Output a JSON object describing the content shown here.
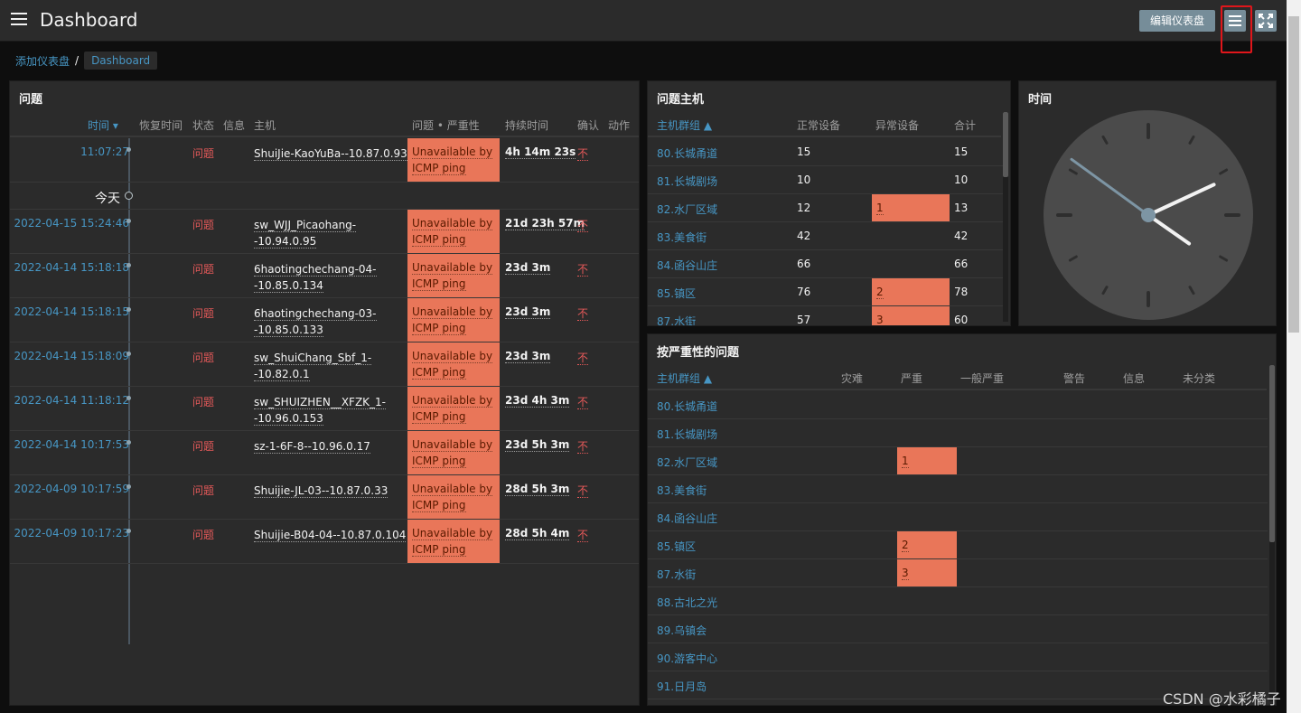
{
  "header": {
    "title": "Dashboard",
    "edit_button": "编辑仪表盘"
  },
  "breadcrumb": {
    "parent": "添加仪表盘",
    "current": "Dashboard"
  },
  "problems": {
    "title": "问题",
    "columns": {
      "time": "时间 ▾",
      "recovery": "恢复时间",
      "status": "状态",
      "info": "信息",
      "host": "主机",
      "problem": "问题 • 严重性",
      "duration": "持续时间",
      "ack": "确认",
      "actions": "动作"
    },
    "today_label": "今天",
    "rows": [
      {
        "time": "11:07:27",
        "status": "问题",
        "host": "ShuiJie-KaoYuBa--10.87.0.93",
        "problem": "Unavailable by ICMP ping",
        "duration": "4h 14m 23s",
        "ack": "不"
      },
      {
        "time": "2022-04-15 15:24:46",
        "status": "问题",
        "host": "sw_WJJ_Picaohang--10.94.0.95",
        "problem": "Unavailable by ICMP ping",
        "duration": "21d 23h 57m",
        "ack": "不"
      },
      {
        "time": "2022-04-14 15:18:18",
        "status": "问题",
        "host": "6haotingchechang-04--10.85.0.134",
        "problem": "Unavailable by ICMP ping",
        "duration": "23d 3m",
        "ack": "不"
      },
      {
        "time": "2022-04-14 15:18:15",
        "status": "问题",
        "host": "6haotingchechang-03--10.85.0.133",
        "problem": "Unavailable by ICMP ping",
        "duration": "23d 3m",
        "ack": "不"
      },
      {
        "time": "2022-04-14 15:18:09",
        "status": "问题",
        "host": "sw_ShuiChang_Sbf_1--10.82.0.1",
        "problem": "Unavailable by ICMP ping",
        "duration": "23d 3m",
        "ack": "不"
      },
      {
        "time": "2022-04-14 11:18:12",
        "status": "问题",
        "host": "sw_SHUIZHEN__XFZK_1--10.96.0.153",
        "problem": "Unavailable by ICMP ping",
        "duration": "23d 4h 3m",
        "ack": "不"
      },
      {
        "time": "2022-04-14 10:17:53",
        "status": "问题",
        "host": "sz-1-6F-8--10.96.0.17",
        "problem": "Unavailable by ICMP ping",
        "duration": "23d 5h 3m",
        "ack": "不"
      },
      {
        "time": "2022-04-09 10:17:59",
        "status": "问题",
        "host": "Shuijie-JL-03--10.87.0.33",
        "problem": "Unavailable by ICMP ping",
        "duration": "28d 5h 3m",
        "ack": "不"
      },
      {
        "time": "2022-04-09 10:17:23",
        "status": "问题",
        "host": "Shuijie-B04-04--10.87.0.104",
        "problem": "Unavailable by ICMP ping",
        "duration": "28d 5h 4m",
        "ack": "不"
      }
    ]
  },
  "problem_hosts": {
    "title": "问题主机",
    "columns": {
      "group": "主机群组 ▲",
      "ok": "正常设备",
      "problem": "异常设备",
      "total": "合计"
    },
    "rows": [
      {
        "group": "80.长城甬道",
        "ok": "15",
        "problem": "",
        "total": "15"
      },
      {
        "group": "81.长城剧场",
        "ok": "10",
        "problem": "",
        "total": "10"
      },
      {
        "group": "82.水厂区域",
        "ok": "12",
        "problem": "1",
        "total": "13"
      },
      {
        "group": "83.美食街",
        "ok": "42",
        "problem": "",
        "total": "42"
      },
      {
        "group": "84.函谷山庄",
        "ok": "66",
        "problem": "",
        "total": "66"
      },
      {
        "group": "85.镇区",
        "ok": "76",
        "problem": "2",
        "total": "78"
      },
      {
        "group": "87.水街",
        "ok": "57",
        "problem": "3",
        "total": "60"
      }
    ]
  },
  "clock": {
    "title": "时间",
    "time": {
      "hours": 4,
      "minutes": 10,
      "seconds": 51
    }
  },
  "severity": {
    "title": "按严重性的问题",
    "columns": {
      "group": "主机群组 ▲",
      "disaster": "灾难",
      "high": "严重",
      "average": "一般严重",
      "warning": "警告",
      "info": "信息",
      "unclassified": "未分类"
    },
    "rows": [
      {
        "group": "80.长城甬道",
        "high": ""
      },
      {
        "group": "81.长城剧场",
        "high": ""
      },
      {
        "group": "82.水厂区域",
        "high": "1"
      },
      {
        "group": "83.美食街",
        "high": ""
      },
      {
        "group": "84.函谷山庄",
        "high": ""
      },
      {
        "group": "85.镇区",
        "high": "2"
      },
      {
        "group": "87.水街",
        "high": "3"
      },
      {
        "group": "88.古北之光",
        "high": ""
      },
      {
        "group": "89.乌镇会",
        "high": ""
      },
      {
        "group": "90.游客中心",
        "high": ""
      },
      {
        "group": "91.日月岛",
        "high": ""
      }
    ]
  },
  "watermark": "CSDN @水彩橘子",
  "colors": {
    "background": "#0e0e0e",
    "widget": "#2b2b2b",
    "link": "#4796c4",
    "problem_red": "#e45959",
    "severity_high": "#e97659",
    "button": "#768d99",
    "highlight_box": "#e0161b"
  }
}
